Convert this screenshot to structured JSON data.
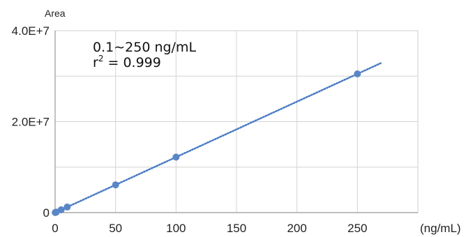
{
  "chart_data": {
    "type": "scatter",
    "title": "",
    "ylabel": "Area",
    "xlabel": "(ng/mL)",
    "annotation_range": "0.1∼250 ng/mL",
    "annotation_r2_prefix": "r",
    "annotation_r2_exp": "2",
    "annotation_r2_value": " = 0.999",
    "x_ticks": [
      "0",
      "50",
      "100",
      "150",
      "200",
      "250"
    ],
    "y_ticks": [
      "0",
      "2.0E+7",
      "4.0E+7"
    ],
    "xlim": [
      0,
      300
    ],
    "ylim": [
      0,
      40000000
    ],
    "grid": true,
    "series": [
      {
        "points": [
          {
            "x": 0.1,
            "y": 12000
          },
          {
            "x": 0.5,
            "y": 60000
          },
          {
            "x": 1,
            "y": 122000
          },
          {
            "x": 5,
            "y": 610000
          },
          {
            "x": 10,
            "y": 1220000
          },
          {
            "x": 50,
            "y": 6100000
          },
          {
            "x": 100,
            "y": 12200000
          },
          {
            "x": 250,
            "y": 30500000
          }
        ],
        "marker_color": "#5b86c6"
      }
    ],
    "trendline": {
      "style": "dotted",
      "color": "#4a7cc4",
      "x_start": 0,
      "x_end": 270,
      "slope": 122000,
      "intercept": 0
    }
  }
}
